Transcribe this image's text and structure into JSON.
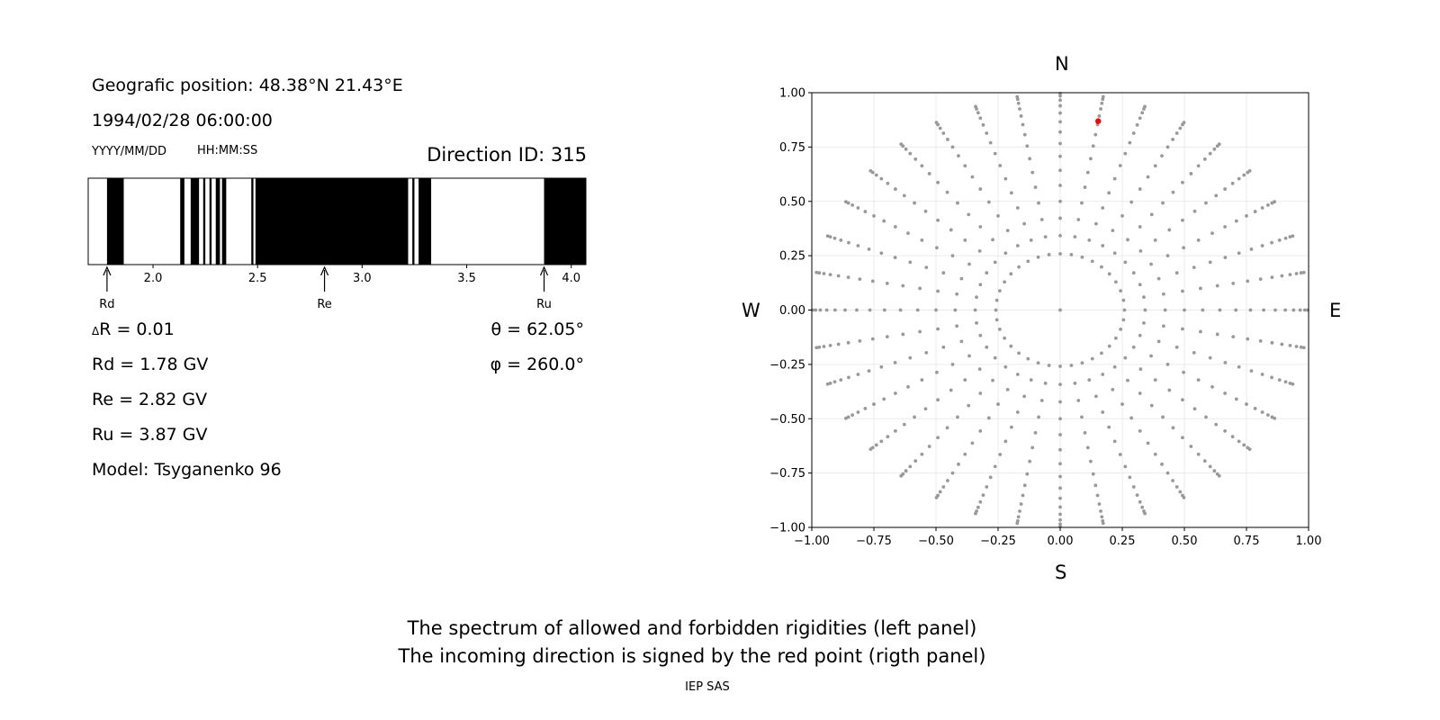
{
  "left_panel": {
    "position": "Geografic position: 48.38°N 21.43°E",
    "datetime": "1994/02/28 06:00:00",
    "date_format": "YYYY/MM/DD",
    "time_format": "HH:MM:SS",
    "direction_id": "Direction ID: 315",
    "delta_r": "R = 0.01",
    "delta_symbol": "Δ",
    "theta": "θ = 62.05°",
    "phi": "φ = 260.0°",
    "rd": "Rd = 1.78 GV",
    "re": "Re = 2.82 GV",
    "ru": "Ru = 3.87 GV",
    "model": "Model: Tsyganenko 96",
    "markers": [
      {
        "label": "Rd",
        "value": 1.78
      },
      {
        "label": "Re",
        "value": 2.82
      },
      {
        "label": "Ru",
        "value": 3.87
      }
    ]
  },
  "right_panel": {
    "north": "N",
    "south": "S",
    "west": "W",
    "east": "E"
  },
  "caption": {
    "line1": "The spectrum of allowed and forbidden rigidities (left panel)",
    "line2": "The incoming direction is signed by the red point (rigth panel)",
    "credit": "IEP SAS"
  },
  "colors": {
    "forbidden": "#000000",
    "allowed": "#ffffff",
    "grid_point": "#999999",
    "selected_point": "#ff0000"
  },
  "chart_data": [
    {
      "type": "bar",
      "name": "rigidity spectrum",
      "xlim": [
        1.69,
        4.07
      ],
      "xticks": [
        2.0,
        2.5,
        3.0,
        3.5,
        4.0
      ],
      "tick_labels": [
        "2.0",
        "2.5",
        "3.0",
        "3.5",
        "4.0"
      ],
      "forbidden_bands": [
        [
          1.78,
          1.86
        ],
        [
          2.13,
          2.15
        ],
        [
          2.18,
          2.22
        ],
        [
          2.24,
          2.25
        ],
        [
          2.27,
          2.28
        ],
        [
          2.3,
          2.32
        ],
        [
          2.33,
          2.35
        ],
        [
          2.47,
          2.48
        ],
        [
          2.49,
          3.22
        ],
        [
          3.24,
          3.25
        ],
        [
          3.27,
          3.33
        ],
        [
          3.87,
          4.07
        ]
      ]
    },
    {
      "type": "scatter",
      "xlim": [
        -1.0,
        1.0
      ],
      "ylim": [
        -1.0,
        1.0
      ],
      "xticks": [
        -1.0,
        -0.75,
        -0.5,
        -0.25,
        0.0,
        0.25,
        0.5,
        0.75,
        1.0
      ],
      "yticks": [
        -1.0,
        -0.75,
        -0.5,
        -0.25,
        0.0,
        0.25,
        0.5,
        0.75,
        1.0
      ],
      "x_tick_labels": [
        "−1.00",
        "−0.75",
        "−0.50",
        "−0.25",
        "0.00",
        "0.25",
        "0.50",
        "0.75",
        "1.00"
      ],
      "y_tick_labels": [
        "−1.00",
        "−0.75",
        "−0.50",
        "−0.25",
        "0.00",
        "0.25",
        "0.50",
        "0.75",
        "1.00"
      ],
      "grid": true,
      "grid_directions": {
        "azimuth_step_deg": 10,
        "zenith_step_deg": 5,
        "zenith_max_deg": 85,
        "ring_start_deg": 15
      },
      "selected_point": {
        "x": 0.153,
        "y": 0.869
      }
    }
  ]
}
